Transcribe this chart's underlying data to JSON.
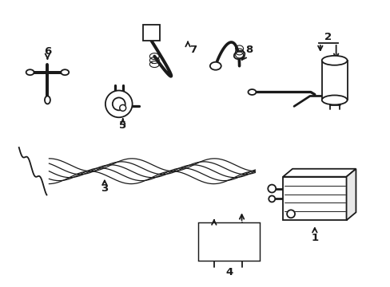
{
  "background_color": "#ffffff",
  "line_color": "#1a1a1a",
  "line_width": 1.3,
  "label_fontsize": 9.5,
  "figsize": [
    4.89,
    3.6
  ],
  "dpi": 100
}
